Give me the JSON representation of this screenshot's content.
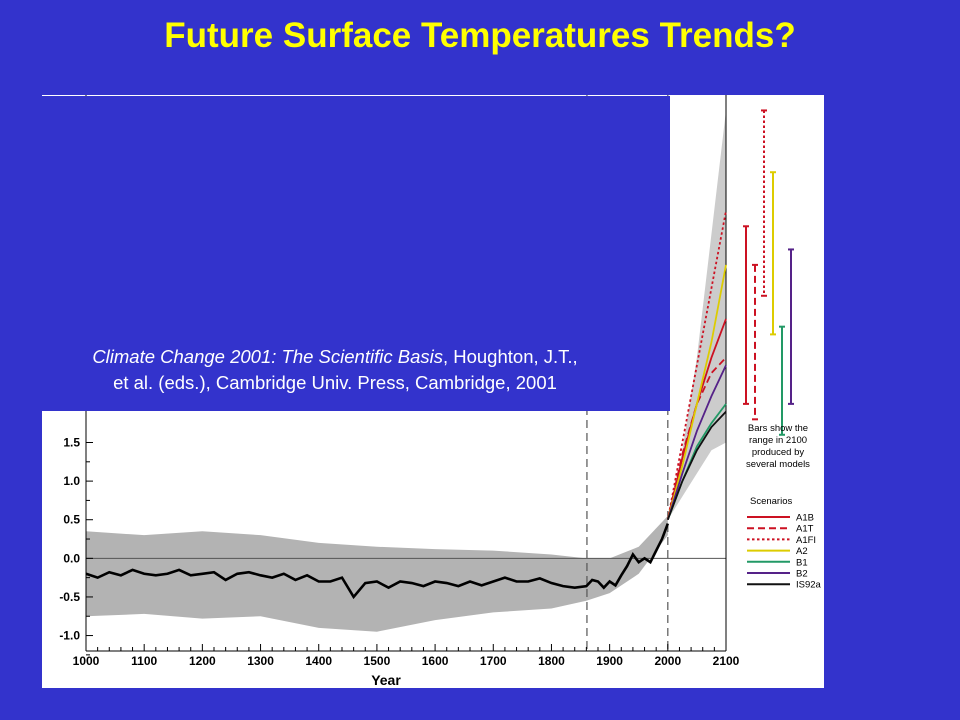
{
  "slide": {
    "title": "Future Surface Temperatures Trends?",
    "citation_title": "Climate Change 2001: The Scientific Basis",
    "citation_authors": ", Houghton, J.T.,",
    "citation_rest": "et al. (eds.), Cambridge Univ. Press, Cambridge, 2001",
    "background_color": "#3333cc",
    "title_color": "#ffff00"
  },
  "chart_data": {
    "type": "line",
    "xlabel": "Year",
    "ylabel": "",
    "xlim": [
      1000,
      2100
    ],
    "ylim": [
      -1.2,
      6.0
    ],
    "x_ticks": [
      "1000",
      "1100",
      "1200",
      "1300",
      "1400",
      "1500",
      "1600",
      "1700",
      "1800",
      "1900",
      "2000",
      "2100"
    ],
    "y_ticks": [
      "1.5",
      "1.0",
      "0.5",
      "0.0",
      "-0.5",
      "-1.0"
    ],
    "vlines": [
      1861,
      2000
    ],
    "zero_line": 0.0,
    "bars_note": [
      "Bars show the",
      "range in 2100",
      "produced by",
      "several models"
    ],
    "legend_title": "Scenarios",
    "observed": {
      "name": "observed",
      "color": "#000000",
      "x": [
        1000,
        1020,
        1040,
        1060,
        1080,
        1100,
        1120,
        1140,
        1160,
        1180,
        1200,
        1220,
        1240,
        1260,
        1280,
        1300,
        1320,
        1340,
        1360,
        1380,
        1400,
        1420,
        1440,
        1460,
        1480,
        1500,
        1520,
        1540,
        1560,
        1580,
        1600,
        1620,
        1640,
        1660,
        1680,
        1700,
        1720,
        1740,
        1760,
        1780,
        1800,
        1820,
        1840,
        1860,
        1870,
        1880,
        1890,
        1900,
        1910,
        1920,
        1930,
        1940,
        1950,
        1960,
        1970,
        1980,
        1990,
        2000
      ],
      "y": [
        -0.2,
        -0.25,
        -0.18,
        -0.22,
        -0.15,
        -0.2,
        -0.22,
        -0.2,
        -0.15,
        -0.22,
        -0.2,
        -0.18,
        -0.28,
        -0.2,
        -0.18,
        -0.22,
        -0.25,
        -0.2,
        -0.28,
        -0.22,
        -0.3,
        -0.3,
        -0.25,
        -0.5,
        -0.32,
        -0.3,
        -0.38,
        -0.3,
        -0.32,
        -0.36,
        -0.3,
        -0.32,
        -0.36,
        -0.3,
        -0.35,
        -0.3,
        -0.25,
        -0.3,
        -0.3,
        -0.26,
        -0.32,
        -0.36,
        -0.38,
        -0.36,
        -0.28,
        -0.3,
        -0.38,
        -0.3,
        -0.35,
        -0.22,
        -0.1,
        0.05,
        -0.05,
        0.0,
        -0.05,
        0.1,
        0.25,
        0.45
      ]
    },
    "uncertainty_band": {
      "color": "#b3b3b3",
      "x": [
        1000,
        1100,
        1200,
        1300,
        1400,
        1500,
        1600,
        1700,
        1800,
        1860,
        1900,
        1950,
        2000
      ],
      "upper": [
        0.35,
        0.3,
        0.35,
        0.3,
        0.2,
        0.15,
        0.12,
        0.1,
        0.05,
        0.0,
        0.0,
        0.15,
        0.55
      ],
      "lower": [
        -0.75,
        -0.72,
        -0.78,
        -0.75,
        -0.9,
        -0.95,
        -0.8,
        -0.7,
        -0.65,
        -0.55,
        -0.45,
        -0.2,
        0.3
      ]
    },
    "projection_envelope": {
      "color": "#cccccc",
      "x": [
        2000,
        2025,
        2050,
        2075,
        2100
      ],
      "upper": [
        0.5,
        1.4,
        2.6,
        4.2,
        5.8
      ],
      "lower": [
        0.5,
        0.8,
        1.1,
        1.4,
        1.5
      ]
    },
    "series": [
      {
        "name": "A1B",
        "color": "#cc1122",
        "dash": "solid",
        "x": [
          2000,
          2025,
          2050,
          2075,
          2100
        ],
        "y": [
          0.5,
          1.3,
          2.0,
          2.6,
          3.1
        ]
      },
      {
        "name": "A1T",
        "color": "#cc1122",
        "dash": "dashed",
        "x": [
          2000,
          2025,
          2050,
          2075,
          2100
        ],
        "y": [
          0.5,
          1.35,
          2.0,
          2.4,
          2.6
        ]
      },
      {
        "name": "A1FI",
        "color": "#cc1122",
        "dash": "dotted",
        "x": [
          2000,
          2025,
          2050,
          2075,
          2100
        ],
        "y": [
          0.5,
          1.5,
          2.5,
          3.5,
          4.5
        ]
      },
      {
        "name": "A2",
        "color": "#ddcc00",
        "dash": "solid",
        "x": [
          2000,
          2025,
          2050,
          2075,
          2100
        ],
        "y": [
          0.5,
          1.2,
          2.0,
          2.8,
          3.8
        ]
      },
      {
        "name": "B1",
        "color": "#229966",
        "dash": "solid",
        "x": [
          2000,
          2025,
          2050,
          2075,
          2100
        ],
        "y": [
          0.5,
          1.0,
          1.45,
          1.75,
          2.0
        ]
      },
      {
        "name": "B2",
        "color": "#552288",
        "dash": "solid",
        "x": [
          2000,
          2025,
          2050,
          2075,
          2100
        ],
        "y": [
          0.5,
          1.1,
          1.65,
          2.1,
          2.5
        ]
      },
      {
        "name": "IS92a",
        "color": "#111111",
        "dash": "solid",
        "x": [
          2000,
          2025,
          2050,
          2075,
          2100
        ],
        "y": [
          0.5,
          1.0,
          1.4,
          1.7,
          1.9
        ]
      }
    ],
    "range_bars_2100": [
      {
        "name": "A1B",
        "color": "#cc1122",
        "dash": "solid",
        "low": 2.0,
        "high": 4.3
      },
      {
        "name": "A1T",
        "color": "#cc1122",
        "dash": "dashed",
        "low": 1.8,
        "high": 3.8
      },
      {
        "name": "A1FI",
        "color": "#cc1122",
        "dash": "dotted",
        "low": 3.4,
        "high": 5.8
      },
      {
        "name": "A2",
        "color": "#ddcc00",
        "dash": "solid",
        "low": 2.9,
        "high": 5.0
      },
      {
        "name": "B1",
        "color": "#229966",
        "dash": "solid",
        "low": 1.6,
        "high": 3.0
      },
      {
        "name": "B2",
        "color": "#552288",
        "dash": "solid",
        "low": 2.0,
        "high": 4.0
      }
    ]
  }
}
